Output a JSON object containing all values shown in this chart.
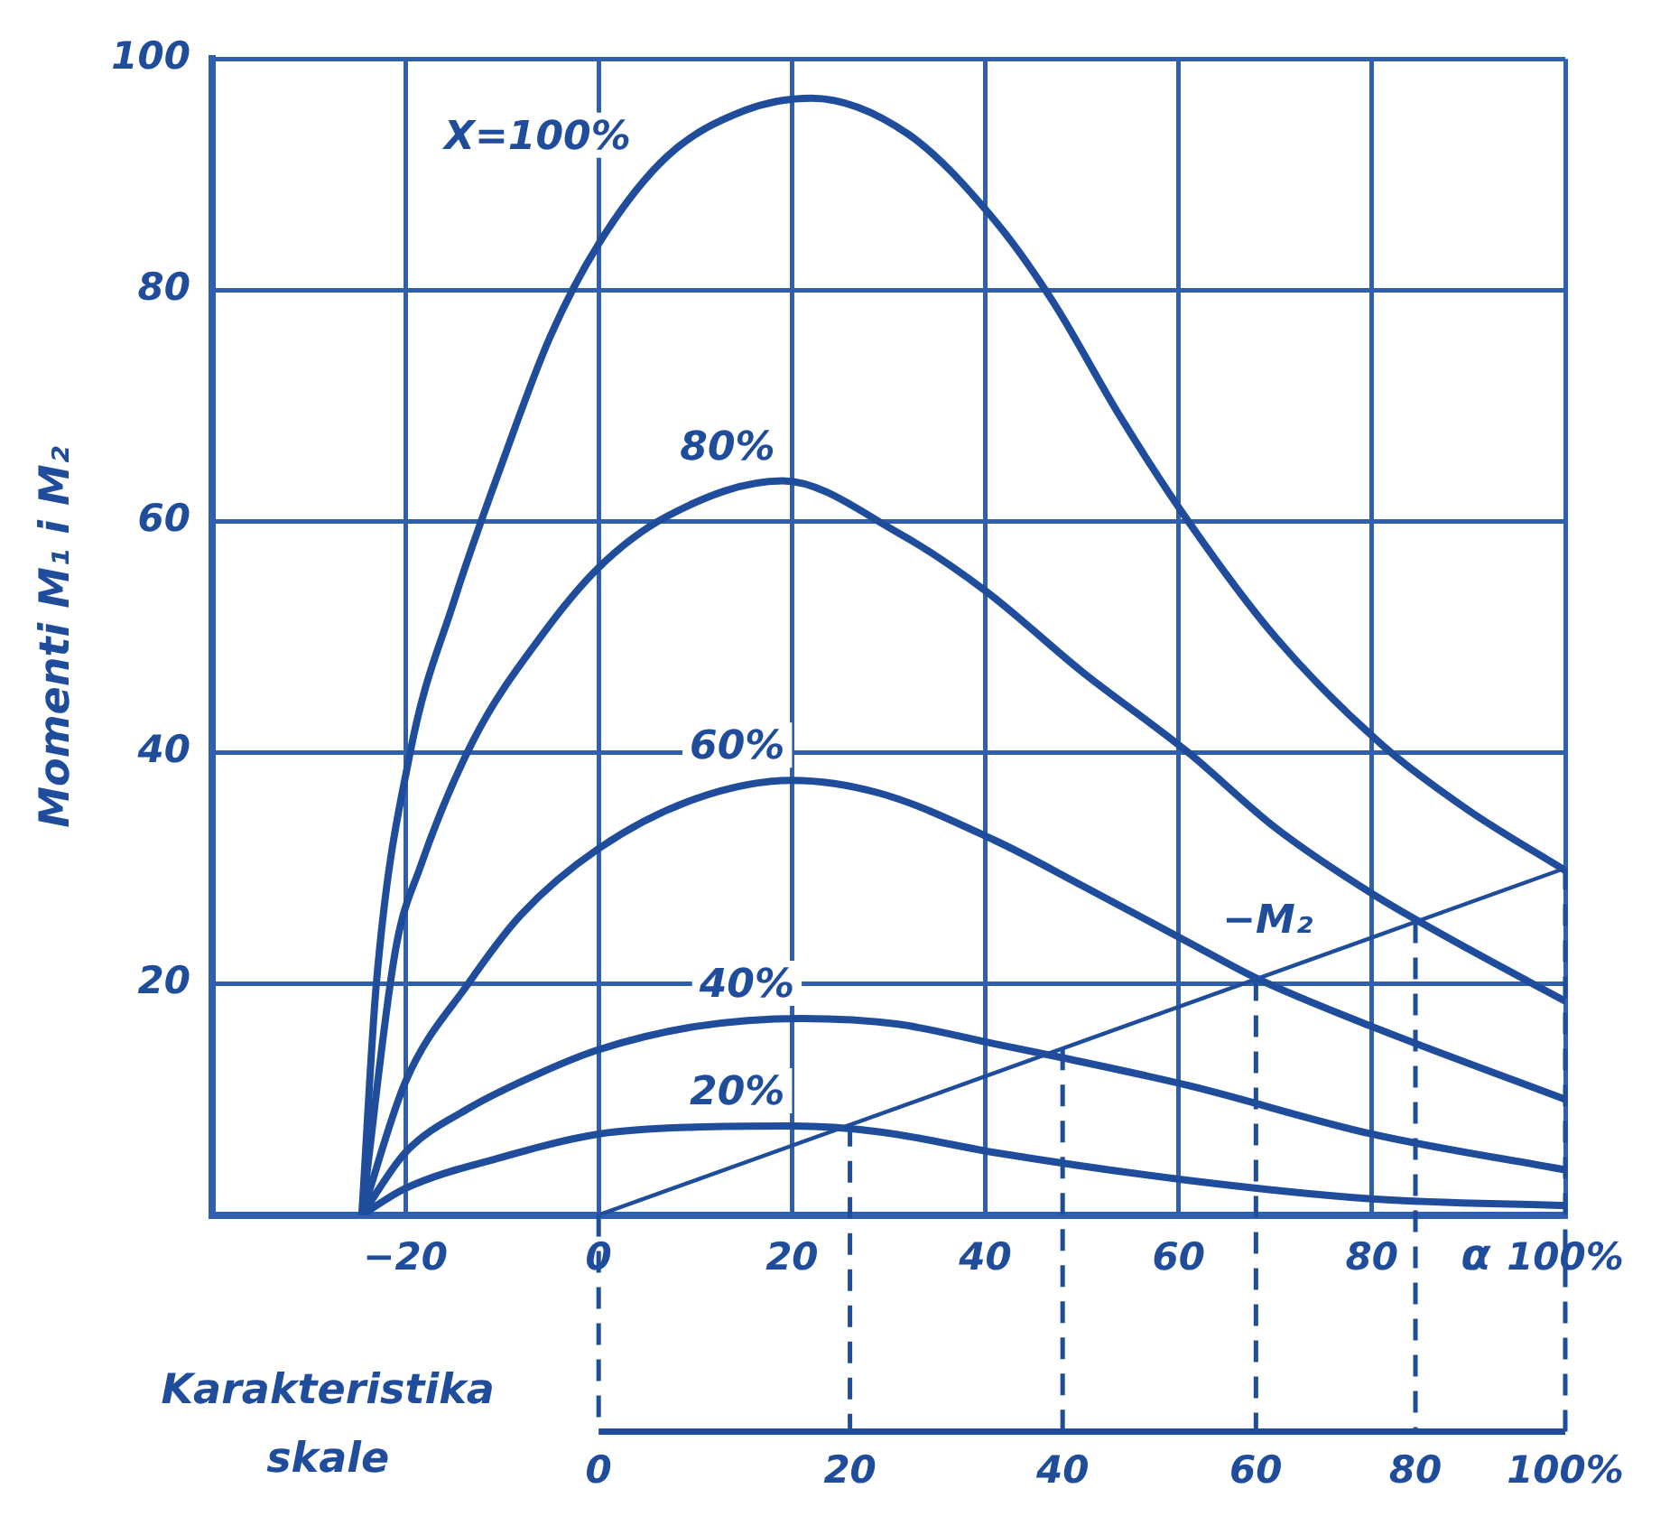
{
  "chart_data": {
    "type": "line",
    "ylabel": "Momenti M₁ i M₂",
    "xlabel": "α",
    "xlim": [
      -40,
      100
    ],
    "xticks": [
      {
        "value": -20,
        "label": "−20"
      },
      0,
      20,
      40,
      60,
      80,
      {
        "value": 100,
        "label": "100%"
      }
    ],
    "ylim": [
      0,
      100
    ],
    "yticks": [
      {
        "value": 0,
        "label": null
      },
      20,
      40,
      60,
      80,
      100
    ],
    "grid": true,
    "legend": false,
    "marker": "none",
    "line_style": "solid",
    "annotations": [
      "Karakteristika skale",
      {
        "text": "0",
        "x": 0,
        "y": 0
      },
      {
        "text": "20",
        "x": 26,
        "y": 7.8
      },
      {
        "text": "40",
        "x": 48,
        "y": 14.4
      },
      {
        "text": "60",
        "x": 68,
        "y": 20.4
      },
      {
        "text": "80",
        "x": 84.5,
        "y": 25.4
      },
      {
        "text": "100%",
        "x": 100,
        "y": 30
      }
    ],
    "series": [
      {
        "name": "X=100%",
        "color": "#1f4d9b",
        "x": [
          -24.5,
          -23,
          -19.5,
          -15,
          -10,
          -5,
          0,
          7,
          15,
          22,
          32,
          41,
          47,
          54,
          61,
          70,
          81,
          90,
          100
        ],
        "values": [
          0,
          20,
          40,
          53,
          65,
          76,
          84,
          91.5,
          95.5,
          96.6,
          93.5,
          86,
          79,
          69,
          60,
          50,
          40.7,
          35,
          29.8
        ]
      },
      {
        "name": "80%",
        "color": "#1f4d9b",
        "x": [
          -24.5,
          -21,
          -18.5,
          -13,
          -6,
          0,
          7,
          19,
          31,
          40,
          50,
          61,
          70,
          80,
          90,
          100
        ],
        "values": [
          0,
          23,
          30,
          41,
          50,
          56,
          60.4,
          63.5,
          59,
          54,
          47,
          40,
          33.5,
          27.8,
          23,
          18.5
        ]
      },
      {
        "name": "60%",
        "color": "#1f4d9b",
        "x": [
          -24.5,
          -20,
          -13.5,
          -8,
          0,
          10,
          20,
          29,
          41,
          50,
          61,
          68,
          80,
          100
        ],
        "values": [
          0,
          11.5,
          20,
          26,
          31.7,
          36,
          37.6,
          36.5,
          32.4,
          28.5,
          23.6,
          20.5,
          16.3,
          10
        ]
      },
      {
        "name": "40%",
        "color": "#1f4d9b",
        "x": [
          -24.5,
          -20,
          -13.5,
          -6,
          0,
          10,
          21,
          31,
          41,
          48,
          61,
          80,
          100
        ],
        "values": [
          0,
          5.4,
          9.2,
          12.3,
          14.3,
          16.3,
          17,
          16.5,
          14.8,
          13.6,
          11.2,
          7,
          3.9
        ]
      },
      {
        "name": "20%",
        "color": "#1f4d9b",
        "x": [
          -24.5,
          -20,
          -10,
          0,
          10,
          20,
          29,
          41,
          61,
          80,
          100
        ],
        "values": [
          0,
          2.3,
          5,
          7,
          7.6,
          7.7,
          7.2,
          5.4,
          3,
          1.4,
          0.8
        ]
      },
      {
        "name": "−M₂",
        "color": "#1f4d9b",
        "x": [
          0,
          100
        ],
        "values": [
          0,
          30
        ]
      }
    ]
  }
}
